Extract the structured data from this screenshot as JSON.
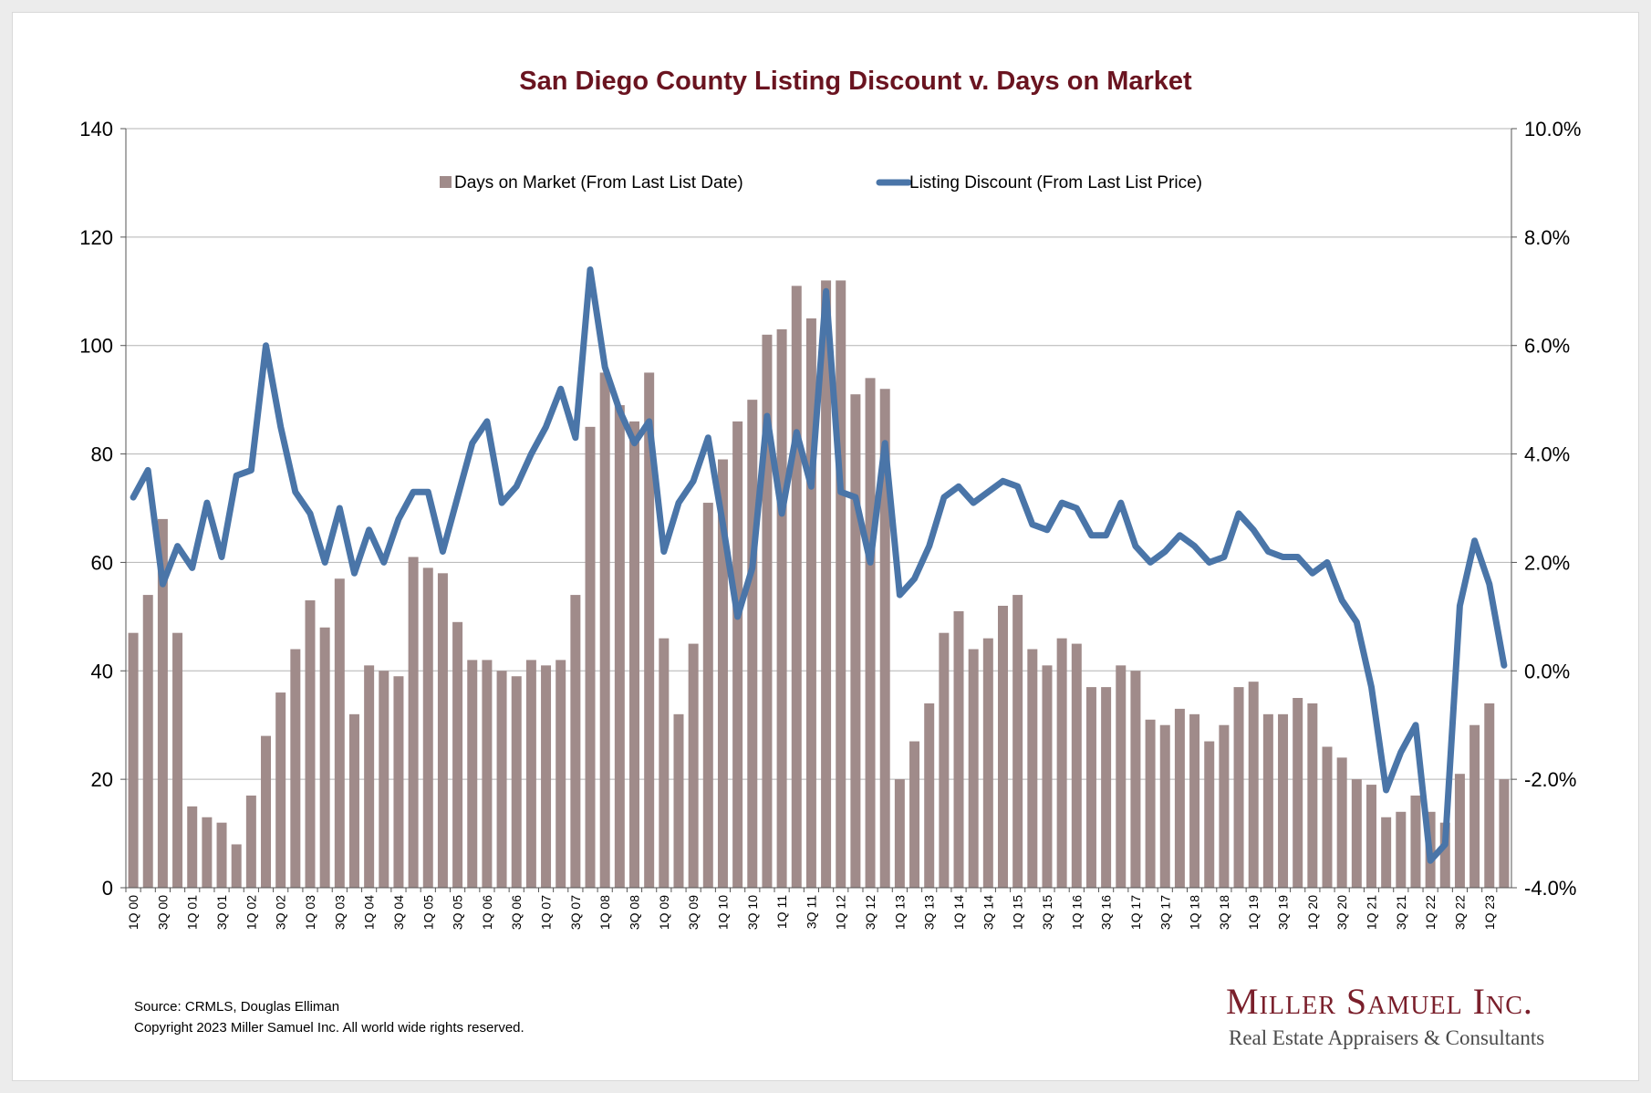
{
  "colors": {
    "bar": "#a08b8a",
    "line": "#4a75a8",
    "title": "#6a1420",
    "grid": "#b3b3b3"
  },
  "footer": {
    "source": "Source: CRMLS, Douglas Elliman",
    "copyright": "Copyright 2023 Miller Samuel Inc.  All world wide rights reserved."
  },
  "logo": {
    "name": "Miller Samuel Inc.",
    "tagline": "Real Estate Appraisers & Consultants"
  },
  "chart_data": {
    "type": "bar",
    "title": "San Diego County Listing Discount v. Days on Market",
    "legend_position": "top-center",
    "grid": true,
    "categories": [
      "1Q 00",
      "2Q 00",
      "3Q 00",
      "4Q 00",
      "1Q 01",
      "2Q 01",
      "3Q 01",
      "4Q 01",
      "1Q 02",
      "2Q 02",
      "3Q 02",
      "4Q 02",
      "1Q 03",
      "2Q 03",
      "3Q 03",
      "4Q 03",
      "1Q 04",
      "2Q 04",
      "3Q 04",
      "4Q 04",
      "1Q 05",
      "2Q 05",
      "3Q 05",
      "4Q 05",
      "1Q 06",
      "2Q 06",
      "3Q 06",
      "4Q 06",
      "1Q 07",
      "2Q 07",
      "3Q 07",
      "4Q 07",
      "1Q 08",
      "2Q 08",
      "3Q 08",
      "4Q 08",
      "1Q 09",
      "2Q 09",
      "3Q 09",
      "4Q 09",
      "1Q 10",
      "2Q 10",
      "3Q 10",
      "4Q 10",
      "1Q 11",
      "2Q 11",
      "3Q 11",
      "4Q 11",
      "1Q 12",
      "2Q 12",
      "3Q 12",
      "4Q 12",
      "1Q 13",
      "2Q 13",
      "3Q 13",
      "4Q 13",
      "1Q 14",
      "2Q 14",
      "3Q 14",
      "4Q 14",
      "1Q 15",
      "2Q 15",
      "3Q 15",
      "4Q 15",
      "1Q 16",
      "2Q 16",
      "3Q 16",
      "4Q 16",
      "1Q 17",
      "2Q 17",
      "3Q 17",
      "4Q 17",
      "1Q 18",
      "2Q 18",
      "3Q 18",
      "4Q 18",
      "1Q 19",
      "2Q 19",
      "3Q 19",
      "4Q 19",
      "1Q 20",
      "2Q 20",
      "3Q 20",
      "4Q 20",
      "1Q 21",
      "2Q 21",
      "3Q 21",
      "4Q 21",
      "1Q 22",
      "2Q 22",
      "3Q 22",
      "4Q 22",
      "1Q 23",
      "2Q 23"
    ],
    "left_axis": {
      "min": 0,
      "max": 140,
      "ticks": [
        "0",
        "20",
        "40",
        "60",
        "80",
        "100",
        "120",
        "140"
      ]
    },
    "right_axis": {
      "min": -4.0,
      "max": 10.0,
      "ticks": [
        "-4.0%",
        "-2.0%",
        "0.0%",
        "2.0%",
        "4.0%",
        "6.0%",
        "8.0%",
        "10.0%"
      ]
    },
    "series": [
      {
        "name": "Days on Market (From Last List Date)",
        "kind": "bar",
        "axis": "left",
        "values": [
          47,
          54,
          68,
          47,
          15,
          13,
          12,
          8,
          17,
          28,
          36,
          44,
          53,
          48,
          57,
          32,
          41,
          40,
          39,
          61,
          59,
          58,
          49,
          42,
          42,
          40,
          39,
          42,
          41,
          42,
          54,
          85,
          95,
          89,
          86,
          95,
          46,
          32,
          45,
          71,
          79,
          86,
          90,
          102,
          103,
          111,
          105,
          112,
          112,
          91,
          94,
          92,
          20,
          27,
          34,
          47,
          51,
          44,
          46,
          52,
          54,
          44,
          41,
          46,
          45,
          37,
          37,
          41,
          40,
          31,
          30,
          33,
          32,
          27,
          30,
          37,
          38,
          32,
          32,
          35,
          34,
          26,
          24,
          20,
          19,
          13,
          14,
          17,
          14,
          12,
          21,
          30,
          34,
          20
        ]
      },
      {
        "name": "Listing Discount (From Last List Price)",
        "kind": "line",
        "axis": "right",
        "values": [
          3.2,
          3.7,
          1.6,
          2.3,
          1.9,
          3.1,
          2.1,
          3.6,
          3.7,
          6.0,
          4.5,
          3.3,
          2.9,
          2.0,
          3.0,
          1.8,
          2.6,
          2.0,
          2.8,
          3.3,
          3.3,
          2.2,
          3.2,
          4.2,
          4.6,
          3.1,
          3.4,
          4.0,
          4.5,
          5.2,
          4.3,
          7.4,
          5.6,
          4.8,
          4.2,
          4.6,
          2.2,
          3.1,
          3.5,
          4.3,
          2.7,
          1.0,
          1.9,
          4.7,
          2.9,
          4.4,
          3.4,
          7.0,
          3.3,
          3.2,
          2.0,
          4.2,
          1.4,
          1.7,
          2.3,
          3.2,
          3.4,
          3.1,
          3.3,
          3.5,
          3.4,
          2.7,
          2.6,
          3.1,
          3.0,
          2.5,
          2.5,
          3.1,
          2.3,
          2.0,
          2.2,
          2.5,
          2.3,
          2.0,
          2.1,
          2.9,
          2.6,
          2.2,
          2.1,
          2.1,
          1.8,
          2.0,
          1.3,
          0.9,
          -0.3,
          -2.2,
          -1.5,
          -1.0,
          -3.5,
          -3.2,
          1.2,
          2.4,
          1.6,
          0.1
        ]
      }
    ]
  }
}
